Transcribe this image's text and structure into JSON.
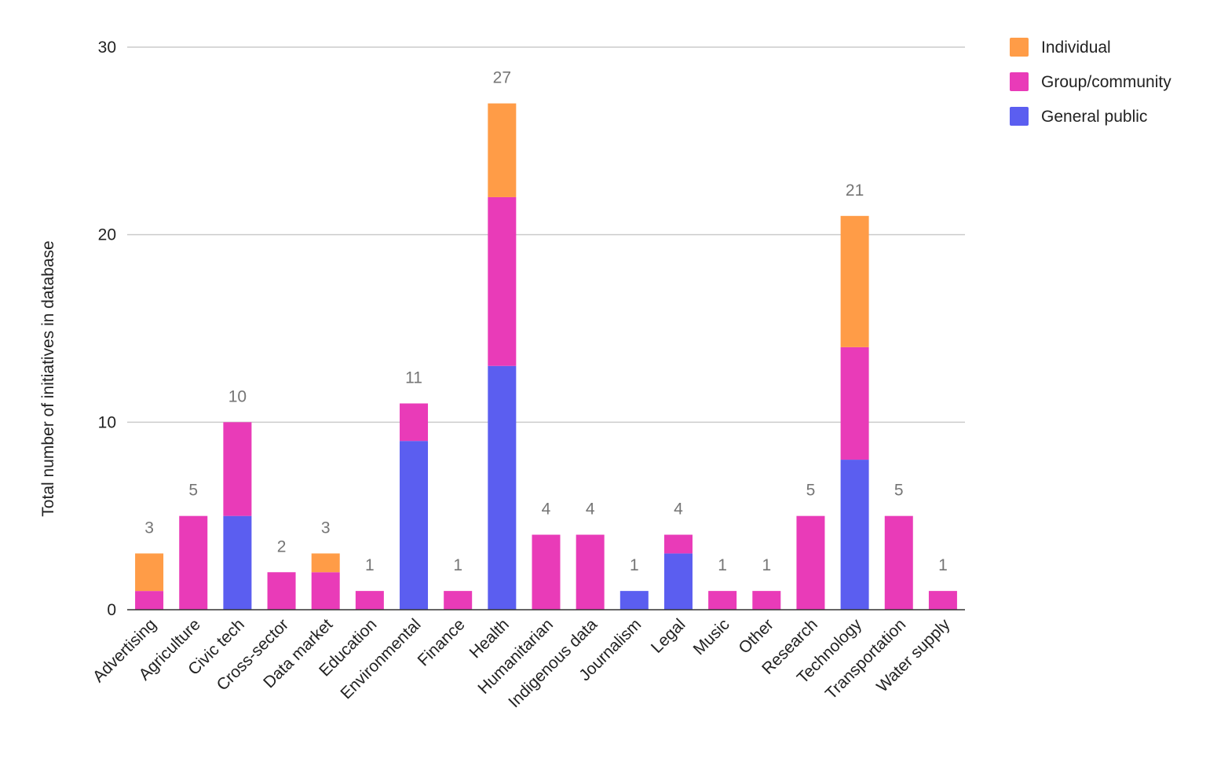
{
  "chart_data": {
    "type": "bar",
    "stacked": true,
    "title": "",
    "xlabel": "",
    "ylabel": "Total number of initiatives in database",
    "ylim": [
      0,
      30
    ],
    "yticks": [
      0,
      10,
      20,
      30
    ],
    "grid": true,
    "legend_position": "top-right",
    "categories": [
      "Advertising",
      "Agriculture",
      "Civic tech",
      "Cross-sector",
      "Data market",
      "Education",
      "Environmental",
      "Finance",
      "Health",
      "Humanitarian",
      "Indigenous data",
      "Journalism",
      "Legal",
      "Music",
      "Other",
      "Research",
      "Technology",
      "Transportation",
      "Water supply"
    ],
    "series": [
      {
        "name": "General public",
        "color": "#5b5ef0",
        "values": [
          0,
          0,
          5,
          0,
          0,
          0,
          9,
          0,
          13,
          0,
          0,
          1,
          3,
          0,
          0,
          0,
          8,
          0,
          0
        ]
      },
      {
        "name": "Group/community",
        "color": "#e93bb8",
        "values": [
          1,
          5,
          5,
          2,
          2,
          1,
          2,
          1,
          9,
          4,
          4,
          0,
          1,
          1,
          1,
          5,
          6,
          5,
          1
        ]
      },
      {
        "name": "Individual",
        "color": "#ff9c47",
        "values": [
          2,
          0,
          0,
          0,
          1,
          0,
          0,
          0,
          5,
          0,
          0,
          0,
          0,
          0,
          0,
          0,
          7,
          0,
          0
        ]
      }
    ],
    "totals": [
      3,
      5,
      10,
      2,
      3,
      1,
      11,
      1,
      27,
      4,
      4,
      1,
      4,
      1,
      1,
      5,
      21,
      5,
      1
    ],
    "legend_order": [
      "Individual",
      "Group/community",
      "General public"
    ]
  }
}
